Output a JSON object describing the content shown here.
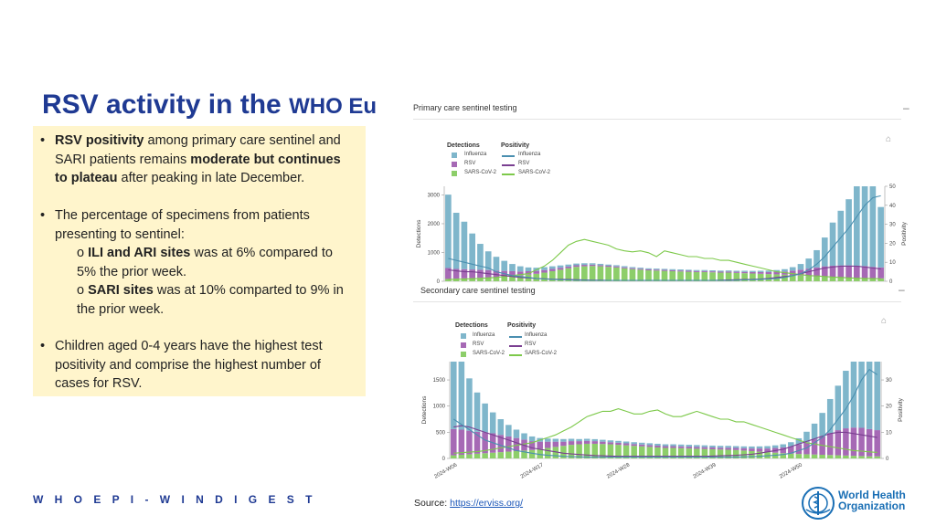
{
  "slide": {
    "title_main": "RSV activity in the ",
    "title_tail": "WHO Eu",
    "footer": "W H O   E P I - W I N   D I G E S T",
    "source_prefix": "Source: ",
    "source_link": "https://erviss.org/",
    "logo_line1": "World Health",
    "logo_line2": "Organization"
  },
  "bullets": {
    "b1_bold": "RSV positivity",
    "b1_t1": " among primary care sentinel and",
    "b1_t2": "SARI patients remains ",
    "b1_bold2": "moderate but continues",
    "b1_bold3": "to plateau",
    "b1_t3": " after peaking in late December.",
    "b2_l1": "The percentage of specimens from patients",
    "b2_l2": "presenting to sentinel:",
    "b2_s1_bold": "ILI and ARI sites",
    "b2_s1_t": " was at 6% compared to",
    "b2_s1_t2": "5% the prior week.",
    "b2_s2_bold": "SARI sites",
    "b2_s2_t": " was at 10% comparted to 9% in",
    "b2_s2_t2": "the prior week.",
    "b3_l1": "Children aged 0-4 years have the highest test",
    "b3_l2": "positivity and comprise the highest number of",
    "b3_l3": "cases for RSV.",
    "bullet_char": "•",
    "sub_char": "o"
  },
  "colors": {
    "influenza": "#7fb6cb",
    "rsv": "#a669b5",
    "sars": "#8dce6a",
    "influenza_line": "#4a8fb0",
    "rsv_line": "#7a3f91",
    "sars_line": "#7dc94a",
    "title": "#1f3a93"
  },
  "chart_data": [
    {
      "type": "bar",
      "panel_title": "Primary care sentinel testing",
      "legend": {
        "detections_title": "Detections",
        "positivity_title": "Positivity",
        "detections": [
          "Influenza",
          "RSV",
          "SARS-CoV-2"
        ],
        "positivity": [
          "Influenza",
          "RSV",
          "SARS-CoV-2"
        ]
      },
      "ylabel": "Detections",
      "y2label": "Positivity",
      "yticks": [
        "0",
        "1000",
        "2000",
        "3000"
      ],
      "y2ticks": [
        "0",
        "10",
        "20",
        "30",
        "40",
        "50"
      ],
      "ylim": [
        0,
        3300
      ],
      "y2lim": [
        0,
        50
      ],
      "influenza": [
        2550,
        1950,
        1650,
        1250,
        900,
        650,
        480,
        350,
        250,
        180,
        130,
        110,
        100,
        90,
        80,
        70,
        60,
        55,
        50,
        45,
        40,
        40,
        40,
        38,
        36,
        35,
        35,
        35,
        35,
        35,
        35,
        35,
        35,
        35,
        35,
        35,
        35,
        40,
        40,
        45,
        50,
        60,
        80,
        120,
        200,
        350,
        600,
        1000,
        1500,
        1900,
        2300,
        2900,
        3500,
        3300,
        2100
      ],
      "rsv": [
        380,
        340,
        320,
        300,
        280,
        260,
        230,
        200,
        170,
        140,
        120,
        100,
        90,
        80,
        70,
        60,
        55,
        50,
        45,
        40,
        40,
        38,
        35,
        35,
        35,
        35,
        35,
        35,
        35,
        35,
        35,
        35,
        35,
        35,
        35,
        40,
        40,
        45,
        50,
        60,
        70,
        90,
        110,
        150,
        200,
        260,
        320,
        370,
        400,
        420,
        430,
        430,
        420,
        400,
        380
      ],
      "sars": [
        80,
        90,
        100,
        110,
        120,
        130,
        140,
        160,
        180,
        200,
        230,
        260,
        300,
        350,
        400,
        450,
        500,
        520,
        530,
        520,
        500,
        480,
        450,
        420,
        400,
        380,
        370,
        360,
        350,
        340,
        330,
        320,
        320,
        310,
        300,
        300,
        290,
        280,
        270,
        260,
        250,
        240,
        230,
        220,
        200,
        180,
        160,
        150,
        140,
        130,
        120,
        110,
        110,
        100,
        100
      ],
      "pos_influenza": [
        12,
        11,
        10,
        9,
        8,
        7,
        5,
        4,
        3,
        2.5,
        2,
        1.5,
        1.2,
        1,
        0.8,
        0.7,
        0.6,
        0.6,
        0.5,
        0.5,
        0.5,
        0.5,
        0.5,
        0.5,
        0.5,
        0.5,
        0.5,
        0.5,
        0.5,
        0.5,
        0.5,
        0.5,
        0.5,
        0.5,
        0.5,
        0.5,
        0.6,
        0.7,
        0.8,
        1,
        1.2,
        1.5,
        2,
        3,
        4,
        6,
        9,
        13,
        18,
        23,
        28,
        34,
        40,
        44,
        45
      ],
      "pos_rsv": [
        6,
        5.5,
        5,
        5,
        4.5,
        4,
        3.5,
        3,
        2.5,
        2,
        1.8,
        1.5,
        1.3,
        1.1,
        1,
        0.9,
        0.8,
        0.7,
        0.6,
        0.6,
        0.5,
        0.5,
        0.5,
        0.5,
        0.5,
        0.5,
        0.5,
        0.5,
        0.5,
        0.5,
        0.5,
        0.5,
        0.5,
        0.5,
        0.6,
        0.7,
        0.8,
        0.9,
        1,
        1.2,
        1.5,
        2,
        2.5,
        3,
        4,
        5,
        6,
        7,
        7.5,
        8,
        8,
        8,
        7.5,
        7,
        6.5
      ],
      "pos_sars": [
        1,
        1,
        1.2,
        1.3,
        1.5,
        1.8,
        2,
        2.5,
        3,
        3.5,
        4,
        6,
        8,
        11,
        15,
        19,
        21,
        22,
        21,
        20,
        19,
        17,
        16,
        15.5,
        16,
        15,
        13,
        16,
        15,
        14,
        13,
        13,
        12,
        12,
        11,
        11,
        10,
        9,
        8,
        7,
        6,
        5,
        4.5,
        4,
        3.5,
        3,
        2.8,
        2.5,
        2.2,
        2,
        1.8,
        1.6,
        1.5,
        1.4,
        1.3
      ]
    },
    {
      "type": "bar",
      "panel_title": "Secondary care sentinel testing",
      "legend": {
        "detections_title": "Detections",
        "positivity_title": "Positivity",
        "detections": [
          "Influenza",
          "RSV",
          "SARS-CoV-2"
        ],
        "positivity": [
          "Influenza",
          "RSV",
          "SARS-CoV-2"
        ]
      },
      "ylabel": "Detections",
      "y2label": "Positivity",
      "yticks": [
        "0",
        "500",
        "1000",
        "1500"
      ],
      "y2ticks": [
        "0",
        "10",
        "20",
        "30"
      ],
      "xticks": [
        "2024-W06",
        "2024-W17",
        "2024-W28",
        "2024-W39",
        "2024-W50"
      ],
      "ylim": [
        0,
        1850
      ],
      "y2lim": [
        0,
        37
      ],
      "influenza": [
        1800,
        1300,
        1000,
        750,
        550,
        400,
        300,
        220,
        160,
        120,
        90,
        70,
        60,
        55,
        50,
        45,
        40,
        40,
        38,
        36,
        35,
        35,
        35,
        35,
        35,
        35,
        35,
        35,
        35,
        35,
        35,
        35,
        35,
        35,
        35,
        35,
        35,
        35,
        38,
        40,
        45,
        50,
        60,
        80,
        120,
        200,
        300,
        450,
        650,
        850,
        1100,
        1350,
        1550,
        1600,
        1450
      ],
      "rsv": [
        500,
        480,
        450,
        420,
        400,
        370,
        330,
        290,
        250,
        210,
        170,
        140,
        120,
        100,
        80,
        70,
        60,
        55,
        50,
        45,
        40,
        40,
        38,
        35,
        35,
        35,
        35,
        35,
        35,
        35,
        35,
        35,
        35,
        35,
        35,
        40,
        40,
        45,
        50,
        60,
        70,
        90,
        110,
        140,
        180,
        230,
        290,
        350,
        420,
        480,
        520,
        540,
        540,
        520,
        500
      ],
      "sars": [
        60,
        70,
        80,
        90,
        100,
        110,
        120,
        130,
        140,
        150,
        160,
        180,
        200,
        220,
        240,
        260,
        270,
        280,
        280,
        275,
        270,
        260,
        250,
        240,
        230,
        220,
        210,
        200,
        200,
        195,
        190,
        185,
        180,
        175,
        170,
        165,
        160,
        150,
        140,
        130,
        120,
        110,
        100,
        90,
        85,
        80,
        75,
        70,
        65,
        60,
        55,
        50,
        45,
        40,
        40
      ],
      "pos_influenza": [
        15,
        13,
        11,
        9,
        7,
        6,
        5,
        4,
        3,
        2.5,
        2,
        1.5,
        1.2,
        1,
        0.8,
        0.7,
        0.6,
        0.5,
        0.5,
        0.5,
        0.5,
        0.5,
        0.5,
        0.5,
        0.5,
        0.5,
        0.5,
        0.5,
        0.5,
        0.5,
        0.5,
        0.5,
        0.5,
        0.5,
        0.5,
        0.5,
        0.5,
        0.6,
        0.7,
        0.8,
        1,
        1.2,
        1.5,
        2,
        3,
        4,
        6,
        8,
        11,
        15,
        19,
        24,
        30,
        34,
        32
      ],
      "pos_rsv": [
        12,
        12.5,
        12,
        11,
        10,
        9,
        8,
        7,
        6,
        5,
        4,
        3.5,
        3,
        2.5,
        2,
        1.7,
        1.5,
        1.3,
        1.1,
        1,
        0.9,
        0.8,
        0.8,
        0.8,
        0.8,
        0.8,
        0.8,
        0.8,
        0.8,
        0.8,
        0.8,
        0.8,
        0.8,
        0.9,
        1,
        1.1,
        1.2,
        1.4,
        1.6,
        2,
        2.5,
        3,
        3.5,
        4.5,
        5.5,
        6.5,
        7.5,
        8.5,
        9.5,
        10,
        10,
        9.5,
        9,
        8.5,
        8
      ],
      "pos_sars": [
        2,
        2.2,
        2.4,
        2.6,
        3,
        3.5,
        4,
        4.5,
        5,
        5.5,
        6,
        7,
        8,
        9,
        10.5,
        12,
        14,
        16,
        17,
        18,
        18,
        19,
        18,
        17,
        17,
        18,
        18.5,
        17,
        16,
        16,
        17,
        18,
        17,
        16,
        15,
        15,
        14,
        14,
        13,
        12,
        11,
        10,
        9,
        8,
        7,
        6,
        5.5,
        5,
        4.5,
        4,
        3.5,
        3,
        2.8,
        2.5,
        2.3
      ]
    }
  ]
}
